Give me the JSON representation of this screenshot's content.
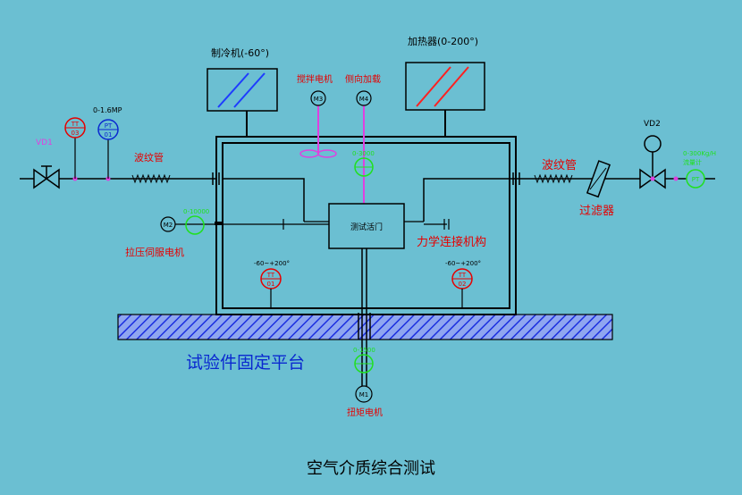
{
  "diagram": {
    "title": "空气介质综合测试",
    "platform_label": "试验件固定平台",
    "chiller_label": "制冷机(-60°)",
    "heater_label": "加热器(0-200°)",
    "stirrer_motor_label": "搅拌电机",
    "side_load_label": "侧向加载",
    "bellows_left_label": "波纹管",
    "bellows_right_label": "波纹管",
    "filter_label": "过滤器",
    "valve_in_label": "VD1",
    "valve_out_label": "VD2",
    "pressure_range_label": "0-1.6MP",
    "flowmeter_range_label": "0-300Kg/H",
    "flowmeter_name_label": "流量计",
    "test_valve_label": "测试活门",
    "mechanism_label": "力学连接机构",
    "tension_motor_label": "拉压伺服电机",
    "torque_motor_label": "扭矩电机",
    "temp_range_1": "-60~+200°",
    "temp_range_2": "-60~+200°",
    "sensor_range_side": "0-3000",
    "sensor_range_tension": "0-10000",
    "sensor_range_torque": "0-1500",
    "instruments": {
      "tt03": [
        "TT",
        "03"
      ],
      "pt01": [
        "PT",
        "01"
      ],
      "tt01": [
        "TT",
        "01"
      ],
      "tt02": [
        "TT",
        "02"
      ],
      "m1": "M1",
      "m2": "M2",
      "m3": "M3",
      "m4": "M4",
      "pt": "PT"
    },
    "colors": {
      "background": "#6bbfd2",
      "line": "#000000",
      "label_red": "#e60000",
      "label_blue": "#0a28d0",
      "sensor_green": "#20e020",
      "pipe_magenta": "#e040e0",
      "chiller_stripe": "#1e3cff",
      "heater_stripe": "#ff2020"
    }
  }
}
